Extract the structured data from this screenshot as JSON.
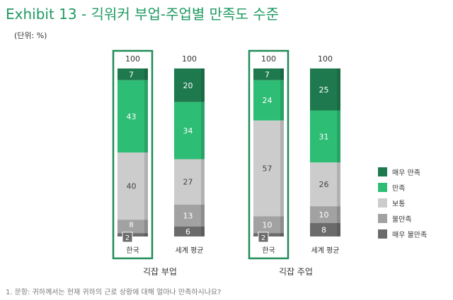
{
  "title": "Exhibit 13 - 긱워커 부업-주업별 만족도 수준",
  "unit_label": "(단위: %)",
  "footnote": "1. 문항: 귀하께서는 현재 귀하의 근로 상황에 대해 얼마나 만족하시나요?",
  "colors": {
    "title": "#1e9a62",
    "highlight_frame": "#1f8c58",
    "very_satisfied": "#1e7a4e",
    "satisfied": "#2dbd74",
    "neutral": "#cccccc",
    "dissatisfied": "#a2a2a2",
    "very_dissatisfied": "#6b6b6b"
  },
  "chart_data": {
    "type": "bar",
    "stacked": true,
    "groups": [
      {
        "label": "긱잡 부업",
        "bars": [
          {
            "category": "한국",
            "total": "100",
            "highlighted": true,
            "values": [
              7,
              43,
              40,
              8,
              2
            ]
          },
          {
            "category": "세계 평균",
            "total": "100",
            "highlighted": false,
            "values": [
              20,
              34,
              27,
              13,
              6
            ]
          }
        ]
      },
      {
        "label": "긱잡 주업",
        "bars": [
          {
            "category": "한국",
            "total": "100",
            "highlighted": true,
            "values": [
              7,
              24,
              57,
              10,
              2
            ]
          },
          {
            "category": "세계 평균",
            "total": "100",
            "highlighted": false,
            "values": [
              25,
              31,
              26,
              10,
              8
            ]
          }
        ]
      }
    ],
    "series": [
      {
        "name": "매우 만족",
        "color": "#1e7a4e"
      },
      {
        "name": "만족",
        "color": "#2dbd74"
      },
      {
        "name": "보통",
        "color": "#cccccc"
      },
      {
        "name": "불만족",
        "color": "#a2a2a2"
      },
      {
        "name": "매우 불만족",
        "color": "#6b6b6b"
      }
    ],
    "legend_position": "right",
    "ylim": [
      0,
      100
    ]
  }
}
